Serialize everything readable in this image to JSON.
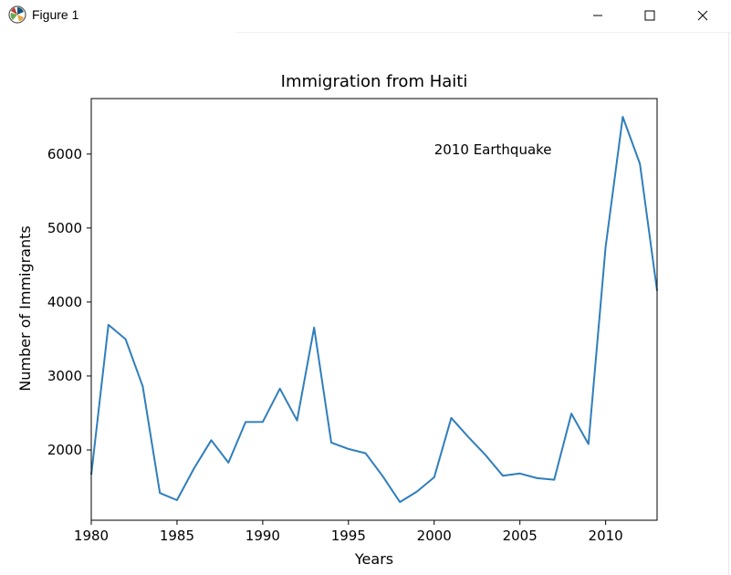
{
  "window": {
    "title": "Figure 1",
    "icon": "matplotlib-icon",
    "controls": {
      "minimize": "minimize-icon",
      "maximize": "maximize-icon",
      "close": "close-icon"
    }
  },
  "chart_data": {
    "type": "line",
    "title": "Immigration from Haiti",
    "xlabel": "Years",
    "ylabel": "Number of Immigrants",
    "xlim": [
      1980,
      2013
    ],
    "ylim": [
      1050,
      6750
    ],
    "xticks": [
      1980,
      1985,
      1990,
      1995,
      2000,
      2005,
      2010
    ],
    "yticks": [
      2000,
      3000,
      4000,
      5000,
      6000
    ],
    "grid": false,
    "line_color": "#2f7ebc",
    "series": [
      {
        "x": [
          1980,
          1981,
          1982,
          1983,
          1984,
          1985,
          1986,
          1987,
          1988,
          1989,
          1990,
          1991,
          1992,
          1993,
          1994,
          1995,
          1996,
          1997,
          1998,
          1999,
          2000,
          2001,
          2002,
          2003,
          2004,
          2005,
          2006,
          2007,
          2008,
          2009,
          2010,
          2011,
          2012,
          2013
        ],
        "values": [
          1666,
          3692,
          3498,
          2860,
          1418,
          1321,
          1753,
          2132,
          1829,
          2377,
          2379,
          2829,
          2399,
          3655,
          2100,
          2014,
          1955,
          1645,
          1295,
          1439,
          1631,
          2433,
          2174,
          1930,
          1652,
          1682,
          1619,
          1598,
          2491,
          2080,
          4744,
          6503,
          5868,
          4152
        ]
      }
    ],
    "annotations": [
      {
        "text": "2010 Earthquake",
        "x": 2000,
        "y": 6000
      }
    ]
  }
}
